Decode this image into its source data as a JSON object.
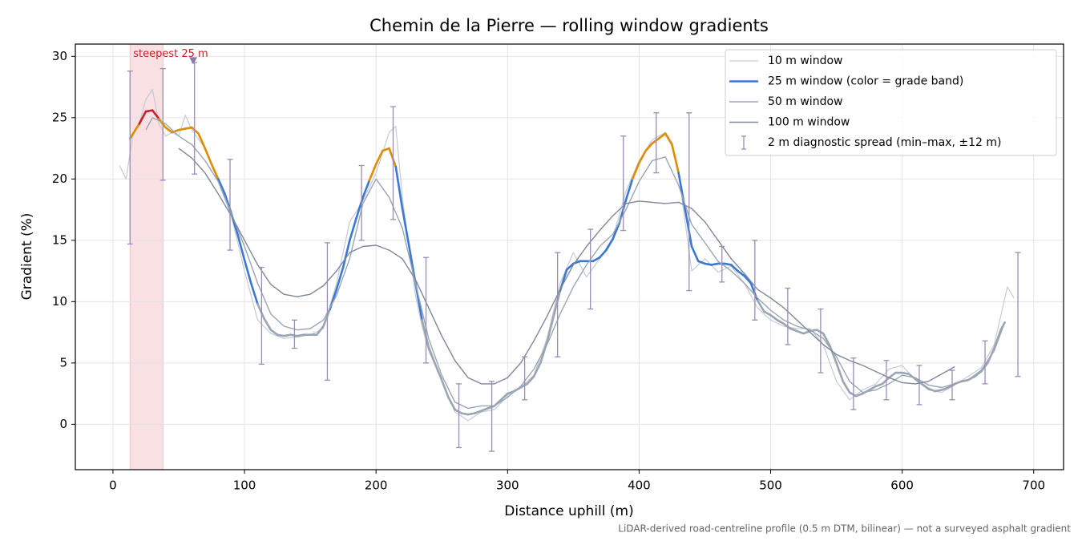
{
  "chart_data": {
    "type": "line",
    "title": "Chemin de la Pierre — rolling window gradients",
    "x_label": "Distance uphill (m)",
    "y_label": "Gradient (%)",
    "footnote": "LiDAR-derived road-centreline profile (0.5 m DTM, bilinear) — not a surveyed asphalt gradient",
    "xlim": [
      -28.6,
      722.7
    ],
    "ylim": [
      -3.7,
      31.0
    ],
    "xticks": [
      0,
      100,
      200,
      300,
      400,
      500,
      600,
      700
    ],
    "yticks": [
      0,
      5,
      10,
      15,
      20,
      25,
      30
    ],
    "grid": true,
    "legend": "upper right",
    "span": {
      "x": [
        13,
        38
      ],
      "color": "#e8a0a8"
    },
    "annotation": {
      "text": "steepest 25 m",
      "x": 61,
      "y": 29.6,
      "color": "#c81e2d",
      "marker_color": "#8c7aa8"
    },
    "series": [
      {
        "name": "10 m window",
        "color": "#c5cad3",
        "width": 1.2,
        "x": [
          5,
          10,
          15,
          20,
          25,
          30,
          35,
          40,
          45,
          50,
          55,
          60,
          70,
          80,
          90,
          100,
          110,
          120,
          130,
          140,
          150,
          160,
          170,
          180,
          190,
          200,
          210,
          215,
          220,
          230,
          235,
          240,
          250,
          260,
          270,
          280,
          290,
          300,
          310,
          320,
          330,
          340,
          350,
          360,
          370,
          380,
          390,
          400,
          410,
          420,
          425,
          430,
          440,
          450,
          460,
          470,
          480,
          490,
          500,
          510,
          520,
          530,
          540,
          550,
          560,
          570,
          580,
          590,
          600,
          610,
          620,
          630,
          640,
          650,
          660,
          670,
          680,
          685
        ],
        "values": [
          21.1,
          20.0,
          23.5,
          24.5,
          26.5,
          27.3,
          24.5,
          23.5,
          23.8,
          23.5,
          25.2,
          24.0,
          22.5,
          19.8,
          17.0,
          12.5,
          8.5,
          7.4,
          7.0,
          7.1,
          7.3,
          7.8,
          11.5,
          16.5,
          18.2,
          20.5,
          23.8,
          24.3,
          18.5,
          10.5,
          8.0,
          6.0,
          3.6,
          1.0,
          0.3,
          1.0,
          1.2,
          2.3,
          3.0,
          4.0,
          7.0,
          11.5,
          14.0,
          12.0,
          13.5,
          15.2,
          19.0,
          21.5,
          23.2,
          23.8,
          23.0,
          20.5,
          12.5,
          13.5,
          12.4,
          12.9,
          11.5,
          9.5,
          8.5,
          8.0,
          7.8,
          7.8,
          6.5,
          3.5,
          2.0,
          2.8,
          3.3,
          4.5,
          4.8,
          3.6,
          2.8,
          2.6,
          3.2,
          3.9,
          4.6,
          6.5,
          11.2,
          10.3
        ]
      },
      {
        "name": "25 m window (color = grade band)",
        "color": "#3a78d4",
        "width": 2.6,
        "color_bands": [
          {
            "max": 10,
            "color": "#9aa5b4"
          },
          {
            "max": 20,
            "color": "#3a78d4"
          },
          {
            "max": 25,
            "color": "#e08c00"
          },
          {
            "color": "#c81e2d"
          }
        ],
        "x": [
          13,
          20,
          25,
          30,
          35,
          40,
          45,
          50,
          55,
          60,
          65,
          70,
          75,
          80,
          85,
          90,
          95,
          100,
          105,
          110,
          115,
          120,
          125,
          130,
          135,
          140,
          145,
          150,
          155,
          160,
          165,
          170,
          175,
          180,
          185,
          190,
          195,
          200,
          205,
          210,
          215,
          220,
          225,
          230,
          235,
          240,
          245,
          250,
          255,
          260,
          265,
          270,
          275,
          280,
          285,
          290,
          295,
          300,
          305,
          310,
          315,
          320,
          325,
          330,
          335,
          340,
          345,
          350,
          355,
          360,
          365,
          370,
          375,
          380,
          385,
          390,
          395,
          400,
          405,
          410,
          415,
          420,
          425,
          430,
          435,
          440,
          445,
          450,
          455,
          460,
          465,
          470,
          475,
          480,
          485,
          490,
          495,
          500,
          505,
          510,
          515,
          520,
          525,
          530,
          535,
          540,
          545,
          550,
          555,
          560,
          565,
          570,
          575,
          580,
          585,
          590,
          595,
          600,
          605,
          610,
          615,
          620,
          625,
          630,
          635,
          640,
          645,
          650,
          655,
          660,
          665,
          670,
          675,
          678
        ],
        "values": [
          23.3,
          24.5,
          25.5,
          25.6,
          24.9,
          24.2,
          23.8,
          24.0,
          24.1,
          24.2,
          23.7,
          22.5,
          21.2,
          20.0,
          18.8,
          17.2,
          15.4,
          13.4,
          11.5,
          9.8,
          8.6,
          7.7,
          7.3,
          7.2,
          7.3,
          7.2,
          7.3,
          7.3,
          7.3,
          8.0,
          9.4,
          11.0,
          12.8,
          15.0,
          16.8,
          18.5,
          19.9,
          21.2,
          22.3,
          22.5,
          21.0,
          17.6,
          14.6,
          11.5,
          8.5,
          6.3,
          4.9,
          3.6,
          2.2,
          1.2,
          0.9,
          0.8,
          0.9,
          1.1,
          1.3,
          1.5,
          2.0,
          2.5,
          2.7,
          3.0,
          3.3,
          3.9,
          5.0,
          6.7,
          8.8,
          10.9,
          12.6,
          13.1,
          13.3,
          13.3,
          13.3,
          13.6,
          14.2,
          15.1,
          16.4,
          18.3,
          20.0,
          21.3,
          22.3,
          22.9,
          23.3,
          23.7,
          22.8,
          20.5,
          17.5,
          14.5,
          13.3,
          13.1,
          13.0,
          13.1,
          13.1,
          13.0,
          12.5,
          12.1,
          11.5,
          10.1,
          9.2,
          8.9,
          8.5,
          8.2,
          7.8,
          7.6,
          7.4,
          7.6,
          7.7,
          7.4,
          6.4,
          5.0,
          3.5,
          2.6,
          2.3,
          2.5,
          2.8,
          3.1,
          3.3,
          3.8,
          4.2,
          4.2,
          4.1,
          3.7,
          3.3,
          2.9,
          2.7,
          2.8,
          3.0,
          3.3,
          3.5,
          3.6,
          3.9,
          4.3,
          5.0,
          6.2,
          7.7,
          8.3
        ]
      },
      {
        "name": "50 m window",
        "color": "#9aa5b4",
        "width": 1.4,
        "x": [
          25,
          30,
          40,
          50,
          60,
          70,
          80,
          90,
          100,
          110,
          120,
          130,
          140,
          150,
          160,
          170,
          180,
          190,
          200,
          210,
          220,
          230,
          240,
          250,
          260,
          270,
          280,
          290,
          300,
          310,
          320,
          330,
          340,
          350,
          360,
          370,
          380,
          390,
          400,
          410,
          420,
          430,
          440,
          450,
          460,
          470,
          480,
          490,
          500,
          510,
          520,
          530,
          540,
          550,
          560,
          570,
          580,
          590,
          600,
          610,
          620,
          630,
          640,
          650,
          660,
          670,
          678
        ],
        "values": [
          24.0,
          25.0,
          24.5,
          23.5,
          22.8,
          21.5,
          19.8,
          17.2,
          14.5,
          11.5,
          9.0,
          8.0,
          7.7,
          7.8,
          8.5,
          10.5,
          13.5,
          18.0,
          20.0,
          18.5,
          16.0,
          11.5,
          7.0,
          4.0,
          1.8,
          1.3,
          1.5,
          1.5,
          2.2,
          3.1,
          4.5,
          6.5,
          9.0,
          11.2,
          13.0,
          14.5,
          15.5,
          17.5,
          19.8,
          21.5,
          21.8,
          19.5,
          16.3,
          14.8,
          13.3,
          12.5,
          11.5,
          10.3,
          9.3,
          8.5,
          8.0,
          7.7,
          7.0,
          5.5,
          3.5,
          2.6,
          2.8,
          3.3,
          4.0,
          3.8,
          3.2,
          3.0,
          3.3,
          3.6,
          4.4,
          6.0,
          8.3
        ]
      },
      {
        "name": "100 m window",
        "color": "#7d8798",
        "width": 1.4,
        "x": [
          50,
          60,
          70,
          80,
          90,
          100,
          110,
          120,
          130,
          140,
          150,
          160,
          170,
          180,
          190,
          200,
          210,
          220,
          230,
          240,
          250,
          260,
          270,
          280,
          290,
          300,
          310,
          320,
          330,
          340,
          350,
          360,
          370,
          380,
          390,
          400,
          410,
          420,
          430,
          440,
          450,
          460,
          470,
          480,
          490,
          500,
          510,
          520,
          530,
          540,
          550,
          560,
          570,
          580,
          590,
          600,
          610,
          620,
          630,
          640
        ],
        "values": [
          22.5,
          21.7,
          20.5,
          18.8,
          17.0,
          15.0,
          13.0,
          11.4,
          10.6,
          10.4,
          10.6,
          11.3,
          12.5,
          14.0,
          14.5,
          14.6,
          14.2,
          13.5,
          11.8,
          9.5,
          7.2,
          5.2,
          3.8,
          3.3,
          3.3,
          3.8,
          5.0,
          6.8,
          8.8,
          11.0,
          13.0,
          14.5,
          15.8,
          17.0,
          18.0,
          18.2,
          18.1,
          18.0,
          18.1,
          17.6,
          16.5,
          15.0,
          13.5,
          12.3,
          11.0,
          10.3,
          9.5,
          8.5,
          7.5,
          6.5,
          5.7,
          5.2,
          4.8,
          4.3,
          3.8,
          3.4,
          3.3,
          3.5,
          4.1,
          4.7
        ]
      },
      {
        "name": "2 m diagnostic spread (min–max, ±12 m)",
        "type": "errorbar",
        "color": "#9a8cb8",
        "x": [
          13,
          38,
          62,
          89,
          113,
          138,
          163,
          189,
          213,
          238,
          263,
          288,
          313,
          338,
          363,
          388,
          413,
          438,
          463,
          488,
          513,
          538,
          563,
          588,
          613,
          638,
          663,
          688
        ],
        "low": [
          14.7,
          19.9,
          20.4,
          14.2,
          4.9,
          6.2,
          3.6,
          15.0,
          16.7,
          5.0,
          -1.9,
          -2.2,
          2.0,
          5.5,
          9.4,
          15.8,
          20.5,
          10.9,
          11.6,
          8.5,
          6.5,
          4.2,
          1.2,
          2.0,
          1.6,
          2.0,
          3.3,
          3.9
        ],
        "high": [
          28.8,
          29.0,
          29.5,
          21.6,
          12.8,
          8.5,
          14.8,
          21.1,
          25.9,
          13.6,
          3.3,
          3.5,
          5.5,
          14.0,
          15.9,
          23.5,
          25.4,
          25.4,
          14.5,
          15.0,
          11.1,
          9.4,
          5.4,
          5.2,
          4.8,
          4.4,
          6.8,
          14.0
        ]
      }
    ]
  }
}
